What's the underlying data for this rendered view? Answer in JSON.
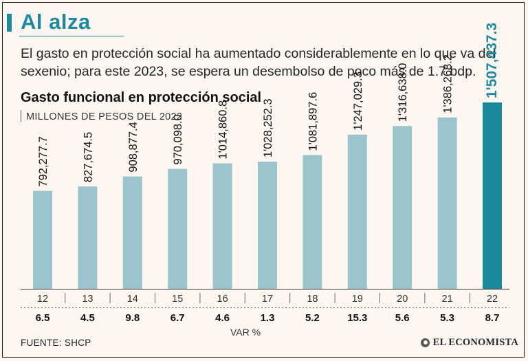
{
  "header": {
    "headline": "Al alza",
    "summary": "El gasto en protección social ha aumentado considerablemente en lo que va del sexenio; para este 2023, se espera un desembolso de poco más de 1.7 bdp."
  },
  "colors": {
    "accent": "#1a8a9c",
    "bar": "#9bc4cd",
    "bar_highlight": "#1a8a9c",
    "background": "#fdf6f1"
  },
  "chart_data": {
    "type": "bar",
    "title": "Gasto funcional en protección social",
    "subtitle": "MILLONES DE PESOS DEL 2022",
    "categories": [
      "12",
      "13",
      "14",
      "15",
      "16",
      "17",
      "18",
      "19",
      "20",
      "21",
      "22"
    ],
    "values": [
      792277.7,
      827674.5,
      908877.4,
      970098.0,
      1014860.8,
      1028252.3,
      1081897.6,
      1247029.3,
      1316638.0,
      1386268.2,
      1507437.3
    ],
    "value_labels": [
      "792,277.7",
      "827,674.5",
      "908,877.4",
      "970,098.0",
      "1'014,860.8",
      "1'028,252.3",
      "1'081,897.6",
      "1'247,029.3",
      "1'316,638.0",
      "1'386,268.2",
      "1'507,437.3"
    ],
    "var_pct": [
      "6.5",
      "4.5",
      "9.8",
      "6.7",
      "4.6",
      "1.3",
      "5.2",
      "15.3",
      "5.6",
      "5.3",
      "8.7"
    ],
    "var_label": "VAR %",
    "highlight_index": 10,
    "ylim": [
      0,
      1507437.3
    ]
  },
  "footer": {
    "source": "FUENTE: SHCP",
    "logo_text": "EL ECONOMISTA"
  }
}
